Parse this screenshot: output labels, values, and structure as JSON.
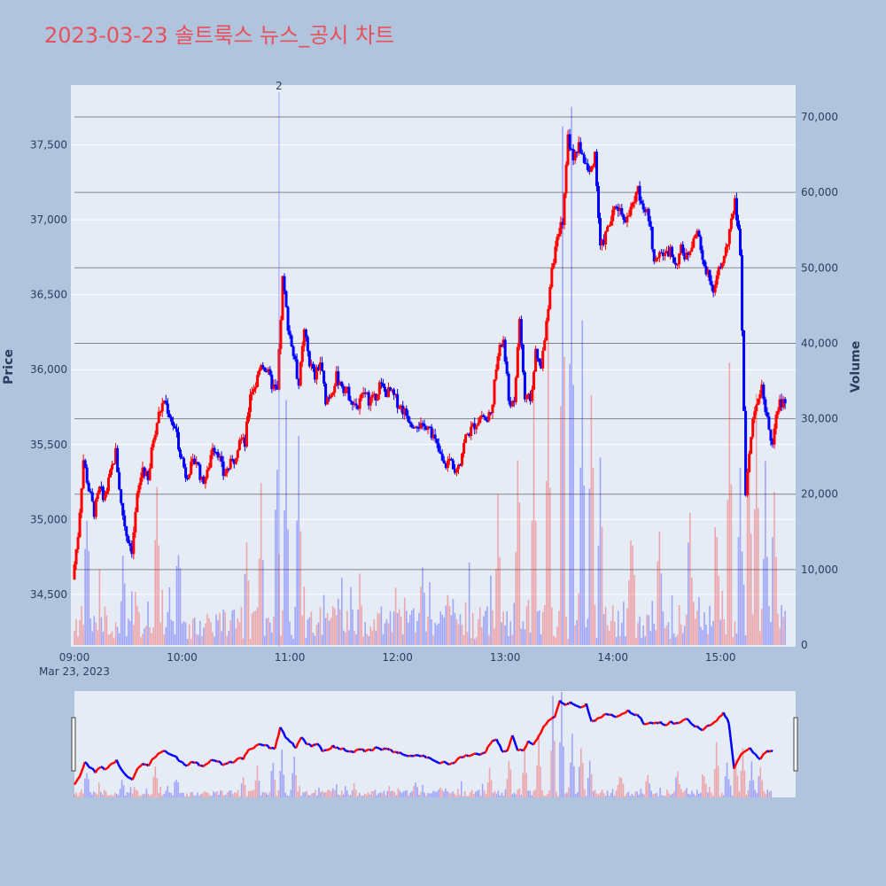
{
  "chart_data": {
    "type": "candlestick",
    "title": "2023-03-23 솔트룩스 뉴스_공시 차트",
    "date_label": "Mar 23, 2023",
    "xlabel": "",
    "ylabel": "Price",
    "y2label": "Volume",
    "x_ticks": [
      "09:00",
      "10:00",
      "11:00",
      "12:00",
      "13:00",
      "14:00",
      "15:00"
    ],
    "y_ticks": [
      34500,
      35000,
      35500,
      36000,
      36500,
      37000,
      37500
    ],
    "y_tick_labels": [
      "34,500",
      "35,000",
      "35,500",
      "36,000",
      "36,500",
      "37,000",
      "37,500"
    ],
    "y2_ticks": [
      0,
      10000,
      20000,
      30000,
      40000,
      50000,
      60000,
      70000
    ],
    "y2_tick_labels": [
      "0",
      "10,000",
      "20,000",
      "30,000",
      "40,000",
      "50,000",
      "60,000",
      "70,000"
    ],
    "ylim": [
      34150,
      37900
    ],
    "y2lim": [
      0,
      72000
    ],
    "time_range_minutes": [
      0,
      390
    ],
    "annotation": {
      "label": "2",
      "time_minutes": 114
    },
    "colors": {
      "up": "#ff0000",
      "down": "#0000ff",
      "title": "#e8505b",
      "background": "#b0c4de",
      "plot_bg": "#e5ecf6"
    },
    "price_path": [
      [
        0,
        34600
      ],
      [
        3,
        34900
      ],
      [
        6,
        35400
      ],
      [
        9,
        35200
      ],
      [
        12,
        35050
      ],
      [
        15,
        35200
      ],
      [
        18,
        35150
      ],
      [
        21,
        35300
      ],
      [
        24,
        35450
      ],
      [
        27,
        35100
      ],
      [
        30,
        34900
      ],
      [
        33,
        34800
      ],
      [
        36,
        35150
      ],
      [
        39,
        35350
      ],
      [
        42,
        35250
      ],
      [
        45,
        35550
      ],
      [
        48,
        35700
      ],
      [
        51,
        35800
      ],
      [
        54,
        35700
      ],
      [
        57,
        35600
      ],
      [
        60,
        35450
      ],
      [
        63,
        35300
      ],
      [
        66,
        35350
      ],
      [
        69,
        35400
      ],
      [
        72,
        35250
      ],
      [
        75,
        35300
      ],
      [
        78,
        35500
      ],
      [
        81,
        35450
      ],
      [
        84,
        35300
      ],
      [
        87,
        35350
      ],
      [
        90,
        35400
      ],
      [
        93,
        35550
      ],
      [
        96,
        35500
      ],
      [
        99,
        35850
      ],
      [
        102,
        35900
      ],
      [
        105,
        36050
      ],
      [
        108,
        36000
      ],
      [
        111,
        35900
      ],
      [
        114,
        35850
      ],
      [
        117,
        36600
      ],
      [
        120,
        36300
      ],
      [
        123,
        36100
      ],
      [
        126,
        35900
      ],
      [
        129,
        36250
      ],
      [
        132,
        36050
      ],
      [
        135,
        35950
      ],
      [
        138,
        36050
      ],
      [
        141,
        35800
      ],
      [
        144,
        35850
      ],
      [
        147,
        35950
      ],
      [
        150,
        35900
      ],
      [
        153,
        35850
      ],
      [
        156,
        35800
      ],
      [
        159,
        35750
      ],
      [
        162,
        35850
      ],
      [
        165,
        35800
      ],
      [
        168,
        35800
      ],
      [
        171,
        35900
      ],
      [
        174,
        35850
      ],
      [
        177,
        35850
      ],
      [
        180,
        35800
      ],
      [
        183,
        35750
      ],
      [
        186,
        35700
      ],
      [
        189,
        35650
      ],
      [
        192,
        35650
      ],
      [
        195,
        35600
      ],
      [
        198,
        35650
      ],
      [
        201,
        35550
      ],
      [
        204,
        35450
      ],
      [
        207,
        35350
      ],
      [
        210,
        35400
      ],
      [
        213,
        35350
      ],
      [
        216,
        35400
      ],
      [
        219,
        35550
      ],
      [
        222,
        35600
      ],
      [
        225,
        35650
      ],
      [
        228,
        35700
      ],
      [
        231,
        35650
      ],
      [
        234,
        35800
      ],
      [
        237,
        36100
      ],
      [
        240,
        36200
      ],
      [
        243,
        35800
      ],
      [
        246,
        35750
      ],
      [
        249,
        36350
      ],
      [
        252,
        35800
      ],
      [
        255,
        35800
      ],
      [
        258,
        36100
      ],
      [
        261,
        36000
      ],
      [
        264,
        36300
      ],
      [
        267,
        36700
      ],
      [
        270,
        36850
      ],
      [
        273,
        37000
      ],
      [
        276,
        37550
      ],
      [
        279,
        37400
      ],
      [
        282,
        37500
      ],
      [
        285,
        37400
      ],
      [
        288,
        37300
      ],
      [
        291,
        37450
      ],
      [
        294,
        36800
      ],
      [
        297,
        36900
      ],
      [
        300,
        37000
      ],
      [
        303,
        37100
      ],
      [
        306,
        37050
      ],
      [
        309,
        37000
      ],
      [
        312,
        37100
      ],
      [
        315,
        37200
      ],
      [
        318,
        37100
      ],
      [
        321,
        37000
      ],
      [
        324,
        36750
      ],
      [
        327,
        36800
      ],
      [
        330,
        36750
      ],
      [
        333,
        36800
      ],
      [
        336,
        36700
      ],
      [
        339,
        36800
      ],
      [
        342,
        36750
      ],
      [
        345,
        36850
      ],
      [
        348,
        36950
      ],
      [
        351,
        36700
      ],
      [
        354,
        36650
      ],
      [
        357,
        36550
      ],
      [
        360,
        36650
      ],
      [
        363,
        36750
      ],
      [
        366,
        36900
      ],
      [
        369,
        37150
      ],
      [
        372,
        36800
      ],
      [
        375,
        35200
      ],
      [
        378,
        35550
      ],
      [
        381,
        35800
      ],
      [
        384,
        35900
      ],
      [
        387,
        35650
      ],
      [
        390,
        35500
      ],
      [
        393,
        35750
      ],
      [
        396,
        35800
      ]
    ],
    "volume_spikes": [
      [
        7,
        15000
      ],
      [
        27,
        9000
      ],
      [
        46,
        20000
      ],
      [
        58,
        10000
      ],
      [
        96,
        12000
      ],
      [
        104,
        20000
      ],
      [
        113,
        22000
      ],
      [
        118,
        28000
      ],
      [
        125,
        24000
      ],
      [
        194,
        8000
      ],
      [
        236,
        18000
      ],
      [
        247,
        22000
      ],
      [
        256,
        30000
      ],
      [
        264,
        40000
      ],
      [
        272,
        60000
      ],
      [
        277,
        67000
      ],
      [
        283,
        40000
      ],
      [
        288,
        32000
      ],
      [
        293,
        22000
      ],
      [
        310,
        10000
      ],
      [
        326,
        12000
      ],
      [
        343,
        14000
      ],
      [
        358,
        12000
      ],
      [
        365,
        33000
      ],
      [
        371,
        19000
      ],
      [
        376,
        24000
      ],
      [
        380,
        28000
      ],
      [
        385,
        20000
      ],
      [
        390,
        18000
      ]
    ]
  }
}
